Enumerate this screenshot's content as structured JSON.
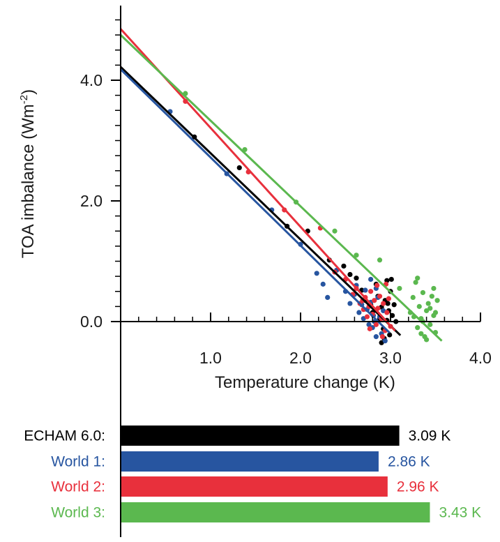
{
  "chart_data": {
    "type": "scatter",
    "title": "",
    "xlabel": "Temperature change (K)",
    "ylabel_main": "TOA imbalance (Wm",
    "ylabel_sup": "-2",
    "ylabel_tail": ")",
    "xlim": [
      0.0,
      4.0
    ],
    "ylim": [
      -0.6,
      5.3
    ],
    "xticks": [
      "1.0",
      "2.0",
      "3.0",
      "4.0"
    ],
    "xtick_values": [
      1.0,
      2.0,
      3.0,
      4.0
    ],
    "yticks": [
      "0.0",
      "2.0",
      "4.0"
    ],
    "ytick_values": [
      0.0,
      2.0,
      4.0
    ],
    "grid": false,
    "series": [
      {
        "name": "ECHAM 6.0:",
        "color": "#000000",
        "fit": {
          "intercept": 4.22,
          "slope": -1.43
        },
        "points": [
          [
            0.82,
            3.06
          ],
          [
            1.32,
            2.55
          ],
          [
            1.85,
            1.58
          ],
          [
            2.08,
            1.5
          ],
          [
            2.32,
            1.02
          ],
          [
            2.48,
            0.92
          ],
          [
            2.55,
            0.78
          ],
          [
            2.62,
            0.72
          ],
          [
            2.68,
            0.52
          ],
          [
            2.72,
            0.35
          ],
          [
            2.78,
            0.28
          ],
          [
            2.8,
            0.15
          ],
          [
            2.84,
            0.62
          ],
          [
            2.86,
            0.42
          ],
          [
            2.88,
            0.05
          ],
          [
            2.9,
            0.24
          ],
          [
            2.92,
            -0.12
          ],
          [
            2.94,
            0.35
          ],
          [
            2.96,
            0.68
          ],
          [
            2.96,
            0.02
          ],
          [
            2.98,
            0.18
          ],
          [
            2.99,
            -0.22
          ],
          [
            3.0,
            0.5
          ],
          [
            3.02,
            0.1
          ],
          [
            3.04,
            0.28
          ],
          [
            3.06,
            0.0
          ],
          [
            2.9,
            -0.35
          ],
          [
            2.93,
            -0.28
          ],
          [
            2.97,
            0.3
          ],
          [
            3.01,
            0.7
          ]
        ]
      },
      {
        "name": "World 1:",
        "color": "#2755a0",
        "fit": {
          "intercept": 4.18,
          "slope": -1.46
        },
        "points": [
          [
            0.55,
            3.48
          ],
          [
            1.18,
            2.45
          ],
          [
            1.68,
            1.85
          ],
          [
            2.0,
            1.28
          ],
          [
            2.18,
            0.8
          ],
          [
            2.25,
            0.62
          ],
          [
            2.3,
            0.4
          ],
          [
            2.4,
            0.85
          ],
          [
            2.5,
            0.5
          ],
          [
            2.55,
            0.3
          ],
          [
            2.6,
            0.45
          ],
          [
            2.62,
            0.6
          ],
          [
            2.65,
            0.15
          ],
          [
            2.68,
            0.28
          ],
          [
            2.7,
            0.05
          ],
          [
            2.72,
            0.52
          ],
          [
            2.74,
            0.2
          ],
          [
            2.76,
            -0.05
          ],
          [
            2.78,
            0.32
          ],
          [
            2.8,
            -0.1
          ],
          [
            2.81,
            0.1
          ],
          [
            2.82,
            0.0
          ],
          [
            2.84,
            -0.25
          ],
          [
            2.86,
            0.4
          ],
          [
            2.88,
            0.08
          ],
          [
            2.9,
            -0.2
          ],
          [
            2.92,
            0.18
          ],
          [
            2.94,
            -0.32
          ],
          [
            2.78,
            0.7
          ],
          [
            2.84,
            0.55
          ]
        ]
      },
      {
        "name": "World 2:",
        "color": "#e8303c",
        "fit": {
          "intercept": 4.85,
          "slope": -1.64
        },
        "points": [
          [
            0.72,
            3.65
          ],
          [
            1.42,
            2.48
          ],
          [
            1.82,
            1.85
          ],
          [
            2.22,
            1.55
          ],
          [
            2.38,
            0.82
          ],
          [
            2.5,
            0.7
          ],
          [
            2.58,
            0.45
          ],
          [
            2.62,
            0.55
          ],
          [
            2.66,
            0.3
          ],
          [
            2.7,
            0.2
          ],
          [
            2.72,
            0.4
          ],
          [
            2.74,
            0.08
          ],
          [
            2.76,
            0.25
          ],
          [
            2.78,
            0.5
          ],
          [
            2.8,
            0.12
          ],
          [
            2.82,
            0.35
          ],
          [
            2.84,
            -0.05
          ],
          [
            2.86,
            0.22
          ],
          [
            2.88,
            0.42
          ],
          [
            2.9,
            0.05
          ],
          [
            2.92,
            0.3
          ],
          [
            2.94,
            -0.15
          ],
          [
            2.96,
            0.15
          ],
          [
            2.98,
            0.38
          ],
          [
            3.0,
            -0.08
          ],
          [
            2.85,
            0.6
          ],
          [
            2.91,
            -0.25
          ],
          [
            2.77,
            -0.12
          ],
          [
            2.95,
            0.62
          ],
          [
            2.69,
            0.35
          ]
        ]
      },
      {
        "name": "World 3:",
        "color": "#5bb84f",
        "fit": {
          "intercept": 4.75,
          "slope": -1.42
        },
        "points": [
          [
            0.72,
            3.78
          ],
          [
            1.38,
            2.85
          ],
          [
            1.95,
            1.98
          ],
          [
            2.38,
            1.5
          ],
          [
            2.62,
            1.1
          ],
          [
            2.88,
            1.02
          ],
          [
            3.1,
            0.55
          ],
          [
            3.22,
            0.15
          ],
          [
            3.25,
            0.4
          ],
          [
            3.28,
            0.65
          ],
          [
            3.3,
            -0.1
          ],
          [
            3.32,
            0.25
          ],
          [
            3.34,
            0.05
          ],
          [
            3.36,
            0.48
          ],
          [
            3.38,
            -0.25
          ],
          [
            3.4,
            0.18
          ],
          [
            3.42,
            0.3
          ],
          [
            3.44,
            -0.05
          ],
          [
            3.46,
            0.42
          ],
          [
            3.48,
            0.1
          ],
          [
            3.5,
            -0.18
          ],
          [
            3.52,
            0.35
          ],
          [
            3.3,
            0.72
          ],
          [
            3.36,
            0.0
          ],
          [
            3.4,
            -0.3
          ],
          [
            3.44,
            0.22
          ],
          [
            3.48,
            0.55
          ],
          [
            3.26,
            0.08
          ],
          [
            3.34,
            -0.2
          ],
          [
            3.5,
            0.15
          ]
        ]
      }
    ],
    "bars": {
      "type": "bar",
      "orientation": "horizontal",
      "categories": [
        "ECHAM 6.0:",
        "World 1:",
        "World 2:",
        "World 3:"
      ],
      "values": [
        3.09,
        2.86,
        2.96,
        3.43
      ],
      "value_labels": [
        "3.09 K",
        "2.86 K",
        "2.96 K",
        "3.43 K"
      ],
      "colors": [
        "#000000",
        "#2755a0",
        "#e8303c",
        "#5bb84f"
      ],
      "xlim": [
        0.0,
        4.0
      ]
    }
  }
}
